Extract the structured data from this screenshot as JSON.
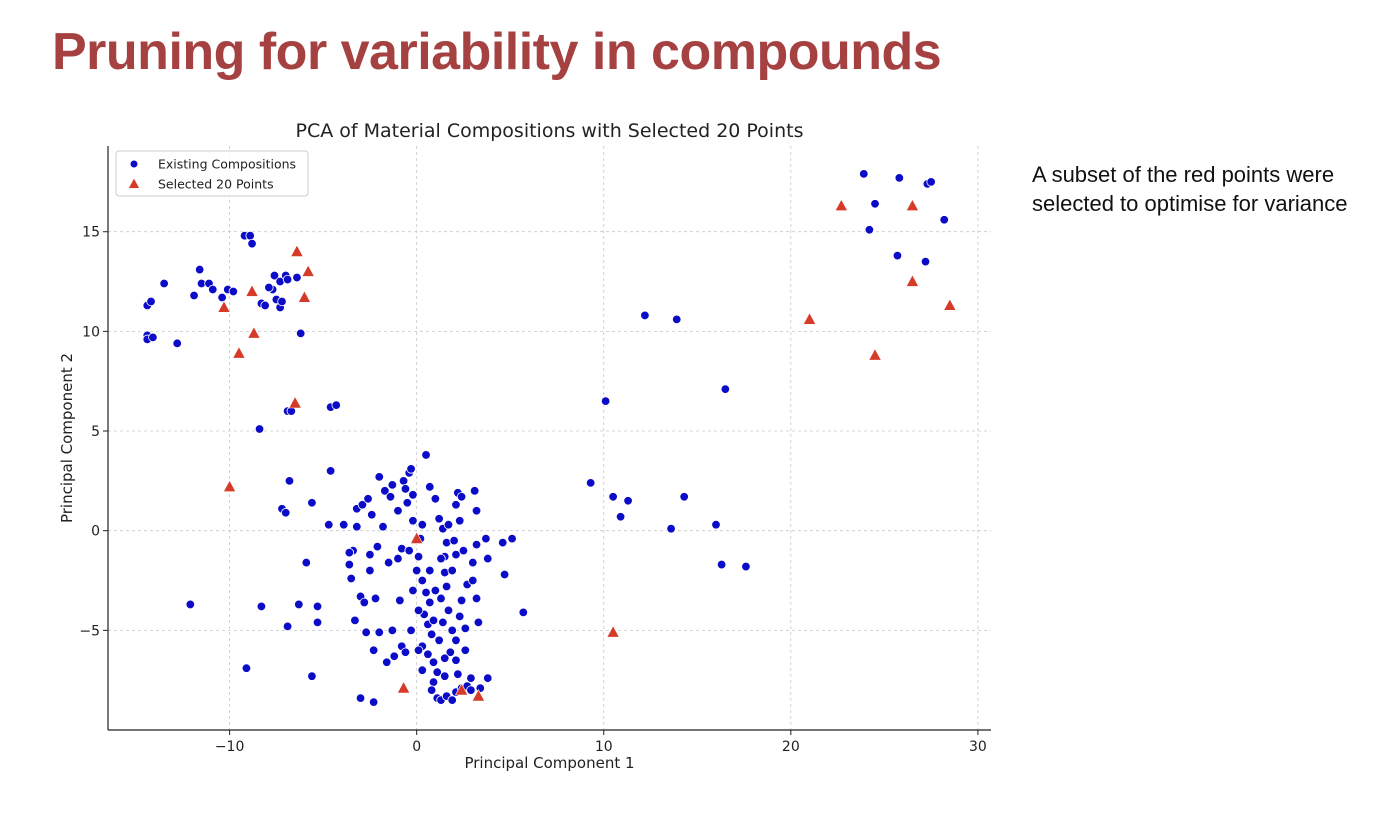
{
  "slide": {
    "title": "Pruning for variability in compounds",
    "note": "A subset of the red points were selected to optimise for variance"
  },
  "colors": {
    "title": "#a64141",
    "existing": "#0b0bc8",
    "selected": "#d63b2a"
  },
  "chart_data": {
    "type": "scatter",
    "title": "PCA of Material Compositions with Selected 20 Points",
    "xlabel": "Principal Component 1",
    "ylabel": "Principal Component 2",
    "xlim": [
      -16.5,
      30.7
    ],
    "ylim": [
      -10,
      19.3
    ],
    "xticks": [
      -10,
      0,
      10,
      20,
      30
    ],
    "yticks": [
      -5,
      0,
      5,
      10,
      15
    ],
    "xtick_labels": [
      "−10",
      "0",
      "10",
      "20",
      "30"
    ],
    "ytick_labels": [
      "−5",
      "0",
      "5",
      "10",
      "15"
    ],
    "grid": true,
    "legend_position": "top-left",
    "series": [
      {
        "name": "Existing Compositions",
        "marker": "circle",
        "color": "#0b0bc8",
        "points": [
          [
            -14.4,
            11.3
          ],
          [
            -14.2,
            11.5
          ],
          [
            -13.5,
            12.4
          ],
          [
            -14.4,
            9.8
          ],
          [
            -14.4,
            9.6
          ],
          [
            -14.1,
            9.7
          ],
          [
            -12.8,
            9.4
          ],
          [
            -11.9,
            11.8
          ],
          [
            -11.6,
            13.1
          ],
          [
            -11.5,
            12.4
          ],
          [
            -11.1,
            12.4
          ],
          [
            -10.9,
            12.1
          ],
          [
            -10.4,
            11.7
          ],
          [
            -10.1,
            12.1
          ],
          [
            -9.8,
            12.0
          ],
          [
            -9.2,
            14.8
          ],
          [
            -8.9,
            14.8
          ],
          [
            -8.8,
            14.4
          ],
          [
            -8.3,
            11.4
          ],
          [
            -8.1,
            11.3
          ],
          [
            -7.6,
            12.8
          ],
          [
            -7.3,
            12.5
          ],
          [
            -7.0,
            12.8
          ],
          [
            -6.9,
            12.6
          ],
          [
            -7.5,
            11.6
          ],
          [
            -7.3,
            11.2
          ],
          [
            -7.2,
            11.5
          ],
          [
            -7.7,
            12.1
          ],
          [
            -7.9,
            12.2
          ],
          [
            -6.4,
            12.7
          ],
          [
            -6.2,
            9.9
          ],
          [
            -6.9,
            6.0
          ],
          [
            -6.7,
            6.0
          ],
          [
            -4.6,
            6.2
          ],
          [
            -4.3,
            6.3
          ],
          [
            -8.4,
            5.1
          ],
          [
            -6.8,
            2.5
          ],
          [
            -7.2,
            1.1
          ],
          [
            -7.0,
            0.9
          ],
          [
            -5.9,
            -1.6
          ],
          [
            -6.3,
            -3.7
          ],
          [
            -5.3,
            -3.8
          ],
          [
            -5.3,
            -4.6
          ],
          [
            -6.9,
            -4.8
          ],
          [
            -8.3,
            -3.8
          ],
          [
            -12.1,
            -3.7
          ],
          [
            -9.1,
            -6.9
          ],
          [
            -5.6,
            -7.3
          ],
          [
            -5.6,
            1.4
          ],
          [
            -4.6,
            3.0
          ],
          [
            -4.7,
            0.3
          ],
          [
            -3.9,
            0.3
          ],
          [
            -3.4,
            -1.0
          ],
          [
            -3.6,
            -1.7
          ],
          [
            -3.5,
            -2.4
          ],
          [
            -3.0,
            -3.3
          ],
          [
            -2.8,
            -3.6
          ],
          [
            -2.5,
            -2.0
          ],
          [
            -2.2,
            -3.4
          ],
          [
            -3.3,
            -4.5
          ],
          [
            -2.7,
            -5.1
          ],
          [
            -2.0,
            -5.1
          ],
          [
            -2.3,
            -6.0
          ],
          [
            -1.6,
            -6.6
          ],
          [
            -1.2,
            -6.3
          ],
          [
            -3.0,
            -8.4
          ],
          [
            -2.3,
            -8.6
          ],
          [
            -3.2,
            1.1
          ],
          [
            -2.9,
            1.3
          ],
          [
            -2.6,
            1.6
          ],
          [
            -2.4,
            0.8
          ],
          [
            -2.0,
            2.7
          ],
          [
            -1.7,
            2.0
          ],
          [
            -1.4,
            1.7
          ],
          [
            -1.8,
            0.2
          ],
          [
            -2.1,
            -0.8
          ],
          [
            -1.5,
            -1.6
          ],
          [
            -0.8,
            -0.9
          ],
          [
            -0.9,
            -3.5
          ],
          [
            -1.3,
            -5.0
          ],
          [
            -0.8,
            -5.8
          ],
          [
            -0.6,
            -6.1
          ],
          [
            -0.4,
            2.9
          ],
          [
            -0.3,
            3.1
          ],
          [
            -0.7,
            2.5
          ],
          [
            -0.6,
            2.1
          ],
          [
            -0.2,
            1.8
          ],
          [
            -1.0,
            1.0
          ],
          [
            -0.2,
            0.5
          ],
          [
            0.2,
            -0.4
          ],
          [
            0.1,
            -1.3
          ],
          [
            0.3,
            -2.5
          ],
          [
            0.5,
            -3.1
          ],
          [
            0.7,
            -3.6
          ],
          [
            0.4,
            -4.2
          ],
          [
            0.6,
            -4.7
          ],
          [
            0.8,
            -5.2
          ],
          [
            0.3,
            -5.8
          ],
          [
            0.6,
            -6.2
          ],
          [
            0.9,
            -6.6
          ],
          [
            1.1,
            -7.1
          ],
          [
            0.9,
            -7.6
          ],
          [
            0.8,
            -8.0
          ],
          [
            1.1,
            -8.4
          ],
          [
            1.3,
            -8.5
          ],
          [
            1.6,
            -8.3
          ],
          [
            1.9,
            -8.5
          ],
          [
            2.1,
            -8.1
          ],
          [
            2.4,
            -7.9
          ],
          [
            2.7,
            -7.8
          ],
          [
            2.9,
            -8.0
          ],
          [
            3.4,
            -7.9
          ],
          [
            3.8,
            -7.4
          ],
          [
            0.5,
            3.8
          ],
          [
            0.7,
            2.2
          ],
          [
            1.0,
            1.6
          ],
          [
            1.2,
            0.6
          ],
          [
            1.4,
            0.1
          ],
          [
            1.6,
            -0.6
          ],
          [
            1.5,
            -1.3
          ],
          [
            1.3,
            -1.4
          ],
          [
            1.5,
            -2.1
          ],
          [
            1.6,
            -2.8
          ],
          [
            1.3,
            -3.4
          ],
          [
            1.7,
            -4.0
          ],
          [
            1.4,
            -4.6
          ],
          [
            1.9,
            -5.0
          ],
          [
            2.1,
            -5.5
          ],
          [
            1.8,
            -6.1
          ],
          [
            2.1,
            -6.5
          ],
          [
            2.2,
            -7.2
          ],
          [
            1.5,
            -7.3
          ],
          [
            2.2,
            1.9
          ],
          [
            2.4,
            1.7
          ],
          [
            2.1,
            1.3
          ],
          [
            2.3,
            0.5
          ],
          [
            2.0,
            -0.5
          ],
          [
            2.5,
            -1.0
          ],
          [
            2.1,
            -1.2
          ],
          [
            2.7,
            -2.7
          ],
          [
            2.4,
            -3.5
          ],
          [
            2.3,
            -4.3
          ],
          [
            2.6,
            -4.9
          ],
          [
            3.1,
            2.0
          ],
          [
            3.2,
            1.0
          ],
          [
            3.2,
            -0.7
          ],
          [
            3.0,
            -1.6
          ],
          [
            3.0,
            -2.5
          ],
          [
            3.2,
            -3.4
          ],
          [
            3.3,
            -4.6
          ],
          [
            3.7,
            -0.4
          ],
          [
            3.8,
            -1.4
          ],
          [
            4.6,
            -0.6
          ],
          [
            5.1,
            -0.4
          ],
          [
            4.7,
            -2.2
          ],
          [
            5.7,
            -4.1
          ],
          [
            2.9,
            -7.4
          ],
          [
            -1.0,
            -1.4
          ],
          [
            0.3,
            0.3
          ],
          [
            -0.4,
            -1.0
          ],
          [
            0.0,
            -2.0
          ],
          [
            -0.2,
            -3.0
          ],
          [
            0.1,
            -4.0
          ],
          [
            -0.3,
            -5.0
          ],
          [
            0.1,
            -6.0
          ],
          [
            0.3,
            -7.0
          ],
          [
            0.7,
            -2.0
          ],
          [
            1.0,
            -3.0
          ],
          [
            0.9,
            -4.5
          ],
          [
            1.2,
            -5.5
          ],
          [
            1.5,
            -6.4
          ],
          [
            -3.6,
            -1.1
          ],
          [
            -0.5,
            1.4
          ],
          [
            -1.3,
            2.3
          ],
          [
            -2.5,
            -1.2
          ],
          [
            -3.2,
            0.2
          ],
          [
            1.7,
            0.3
          ],
          [
            1.9,
            -2.0
          ],
          [
            2.6,
            -6.0
          ],
          [
            12.2,
            10.8
          ],
          [
            13.9,
            10.6
          ],
          [
            16.5,
            7.1
          ],
          [
            10.1,
            6.5
          ],
          [
            9.3,
            2.4
          ],
          [
            10.5,
            1.7
          ],
          [
            11.3,
            1.5
          ],
          [
            10.9,
            0.7
          ],
          [
            14.3,
            1.7
          ],
          [
            13.6,
            0.1
          ],
          [
            16.0,
            0.3
          ],
          [
            16.3,
            -1.7
          ],
          [
            17.6,
            -1.8
          ],
          [
            23.9,
            17.9
          ],
          [
            25.8,
            17.7
          ],
          [
            27.3,
            17.4
          ],
          [
            27.5,
            17.5
          ],
          [
            24.5,
            16.4
          ],
          [
            28.2,
            15.6
          ],
          [
            24.2,
            15.1
          ],
          [
            25.7,
            13.8
          ],
          [
            27.2,
            13.5
          ]
        ]
      },
      {
        "name": "Selected 20 Points",
        "marker": "triangle",
        "color": "#d63b2a",
        "points": [
          [
            -6.4,
            14.0
          ],
          [
            -5.8,
            13.0
          ],
          [
            -8.8,
            12.0
          ],
          [
            -6.0,
            11.7
          ],
          [
            -10.3,
            11.2
          ],
          [
            -8.7,
            9.9
          ],
          [
            -9.5,
            8.9
          ],
          [
            -6.5,
            6.4
          ],
          [
            -10.0,
            2.2
          ],
          [
            0.0,
            -0.4
          ],
          [
            -0.7,
            -7.9
          ],
          [
            2.4,
            -8.0
          ],
          [
            3.3,
            -8.3
          ],
          [
            10.5,
            -5.1
          ],
          [
            21.0,
            10.6
          ],
          [
            22.7,
            16.3
          ],
          [
            26.5,
            16.3
          ],
          [
            26.5,
            12.5
          ],
          [
            28.5,
            11.3
          ],
          [
            24.5,
            8.8
          ]
        ]
      }
    ]
  }
}
